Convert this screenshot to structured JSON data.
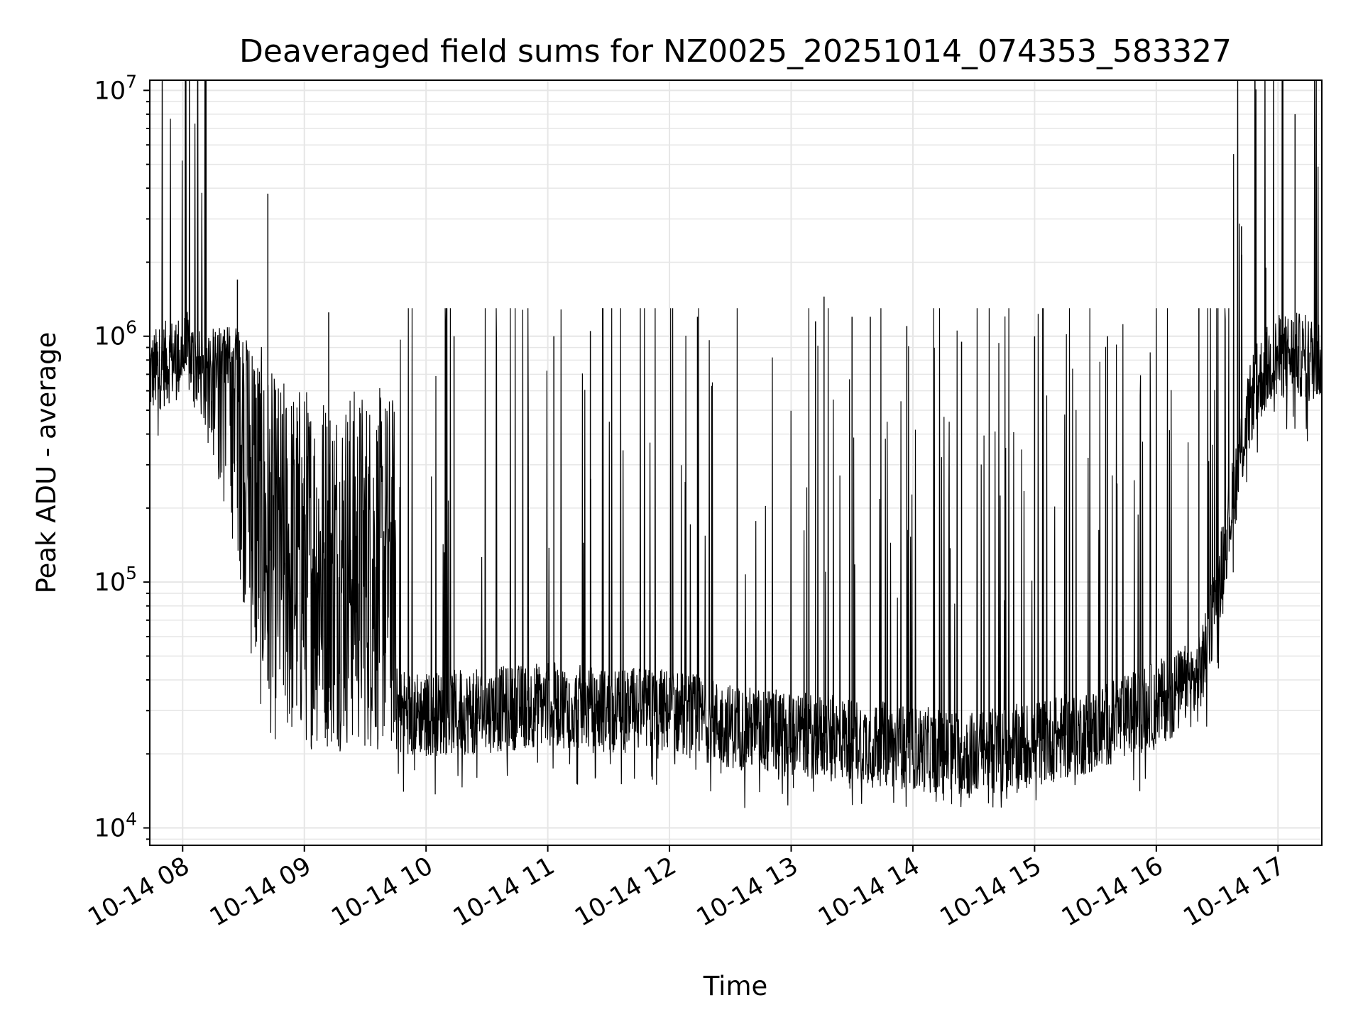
{
  "chart_data": {
    "type": "line",
    "title": "Deaveraged field sums for NZ0025_20251014_074353_583327",
    "xlabel": "Time",
    "ylabel": "Peak ADU - average",
    "yscale": "log",
    "ylim": [
      8500,
      11000000
    ],
    "xlim": [
      7.73,
      17.36
    ],
    "grid": true,
    "line_color": "#000000",
    "x_ticks": [
      {
        "value": 8,
        "label": "10-14 08"
      },
      {
        "value": 9,
        "label": "10-14 09"
      },
      {
        "value": 10,
        "label": "10-14 10"
      },
      {
        "value": 11,
        "label": "10-14 11"
      },
      {
        "value": 12,
        "label": "10-14 12"
      },
      {
        "value": 13,
        "label": "10-14 13"
      },
      {
        "value": 14,
        "label": "10-14 14"
      },
      {
        "value": 15,
        "label": "10-14 15"
      },
      {
        "value": 16,
        "label": "10-14 16"
      },
      {
        "value": 17,
        "label": "10-14 17"
      }
    ],
    "y_ticks": [
      {
        "value": 10000,
        "base": "10",
        "exp": "4"
      },
      {
        "value": 100000,
        "base": "10",
        "exp": "5"
      },
      {
        "value": 1000000,
        "base": "10",
        "exp": "6"
      },
      {
        "value": 10000000,
        "base": "10",
        "exp": "7"
      }
    ],
    "series": [
      {
        "name": "Peak ADU - average",
        "baseline_profile": [
          [
            7.73,
            700000
          ],
          [
            7.9,
            800000
          ],
          [
            8.05,
            850000
          ],
          [
            8.15,
            700000
          ],
          [
            8.3,
            350000
          ],
          [
            8.45,
            200000
          ],
          [
            8.55,
            80000
          ],
          [
            8.65,
            45000
          ],
          [
            8.75,
            35000
          ],
          [
            9.0,
            33000
          ],
          [
            9.5,
            32000
          ],
          [
            10.0,
            29000
          ],
          [
            10.5,
            30000
          ],
          [
            11.0,
            32000
          ],
          [
            11.5,
            30000
          ],
          [
            12.0,
            30000
          ],
          [
            12.5,
            26000
          ],
          [
            13.0,
            24000
          ],
          [
            13.5,
            23000
          ],
          [
            14.0,
            21000
          ],
          [
            14.5,
            20000
          ],
          [
            15.0,
            22000
          ],
          [
            15.5,
            25000
          ],
          [
            16.0,
            32000
          ],
          [
            16.35,
            40000
          ],
          [
            16.5,
            90000
          ],
          [
            16.6,
            180000
          ],
          [
            16.7,
            350000
          ],
          [
            16.8,
            600000
          ],
          [
            16.95,
            800000
          ],
          [
            17.1,
            850000
          ],
          [
            17.36,
            800000
          ]
        ],
        "spikes": [
          {
            "x": 8.7,
            "y": 3800000
          },
          {
            "x": 8.45,
            "y": 1700000
          },
          {
            "x": 9.2,
            "y": 1250000
          },
          {
            "x": 10.23,
            "y": 1000000
          },
          {
            "x": 11.05,
            "y": 1000000
          },
          {
            "x": 11.35,
            "y": 1050000
          },
          {
            "x": 12.23,
            "y": 1200000
          },
          {
            "x": 13.2,
            "y": 1150000
          },
          {
            "x": 13.27,
            "y": 1450000
          },
          {
            "x": 13.5,
            "y": 1200000
          },
          {
            "x": 13.65,
            "y": 1200000
          },
          {
            "x": 13.95,
            "y": 1100000
          },
          {
            "x": 14.4,
            "y": 950000
          },
          {
            "x": 15.0,
            "y": 1000000
          },
          {
            "x": 15.6,
            "y": 1000000
          },
          {
            "x": 16.35,
            "y": 1300000
          },
          {
            "x": 16.7,
            "y": 2800000
          },
          {
            "x": 16.9,
            "y": 1900000
          },
          {
            "x": 17.14,
            "y": 8000000
          }
        ],
        "min_observed": 12000
      }
    ]
  }
}
